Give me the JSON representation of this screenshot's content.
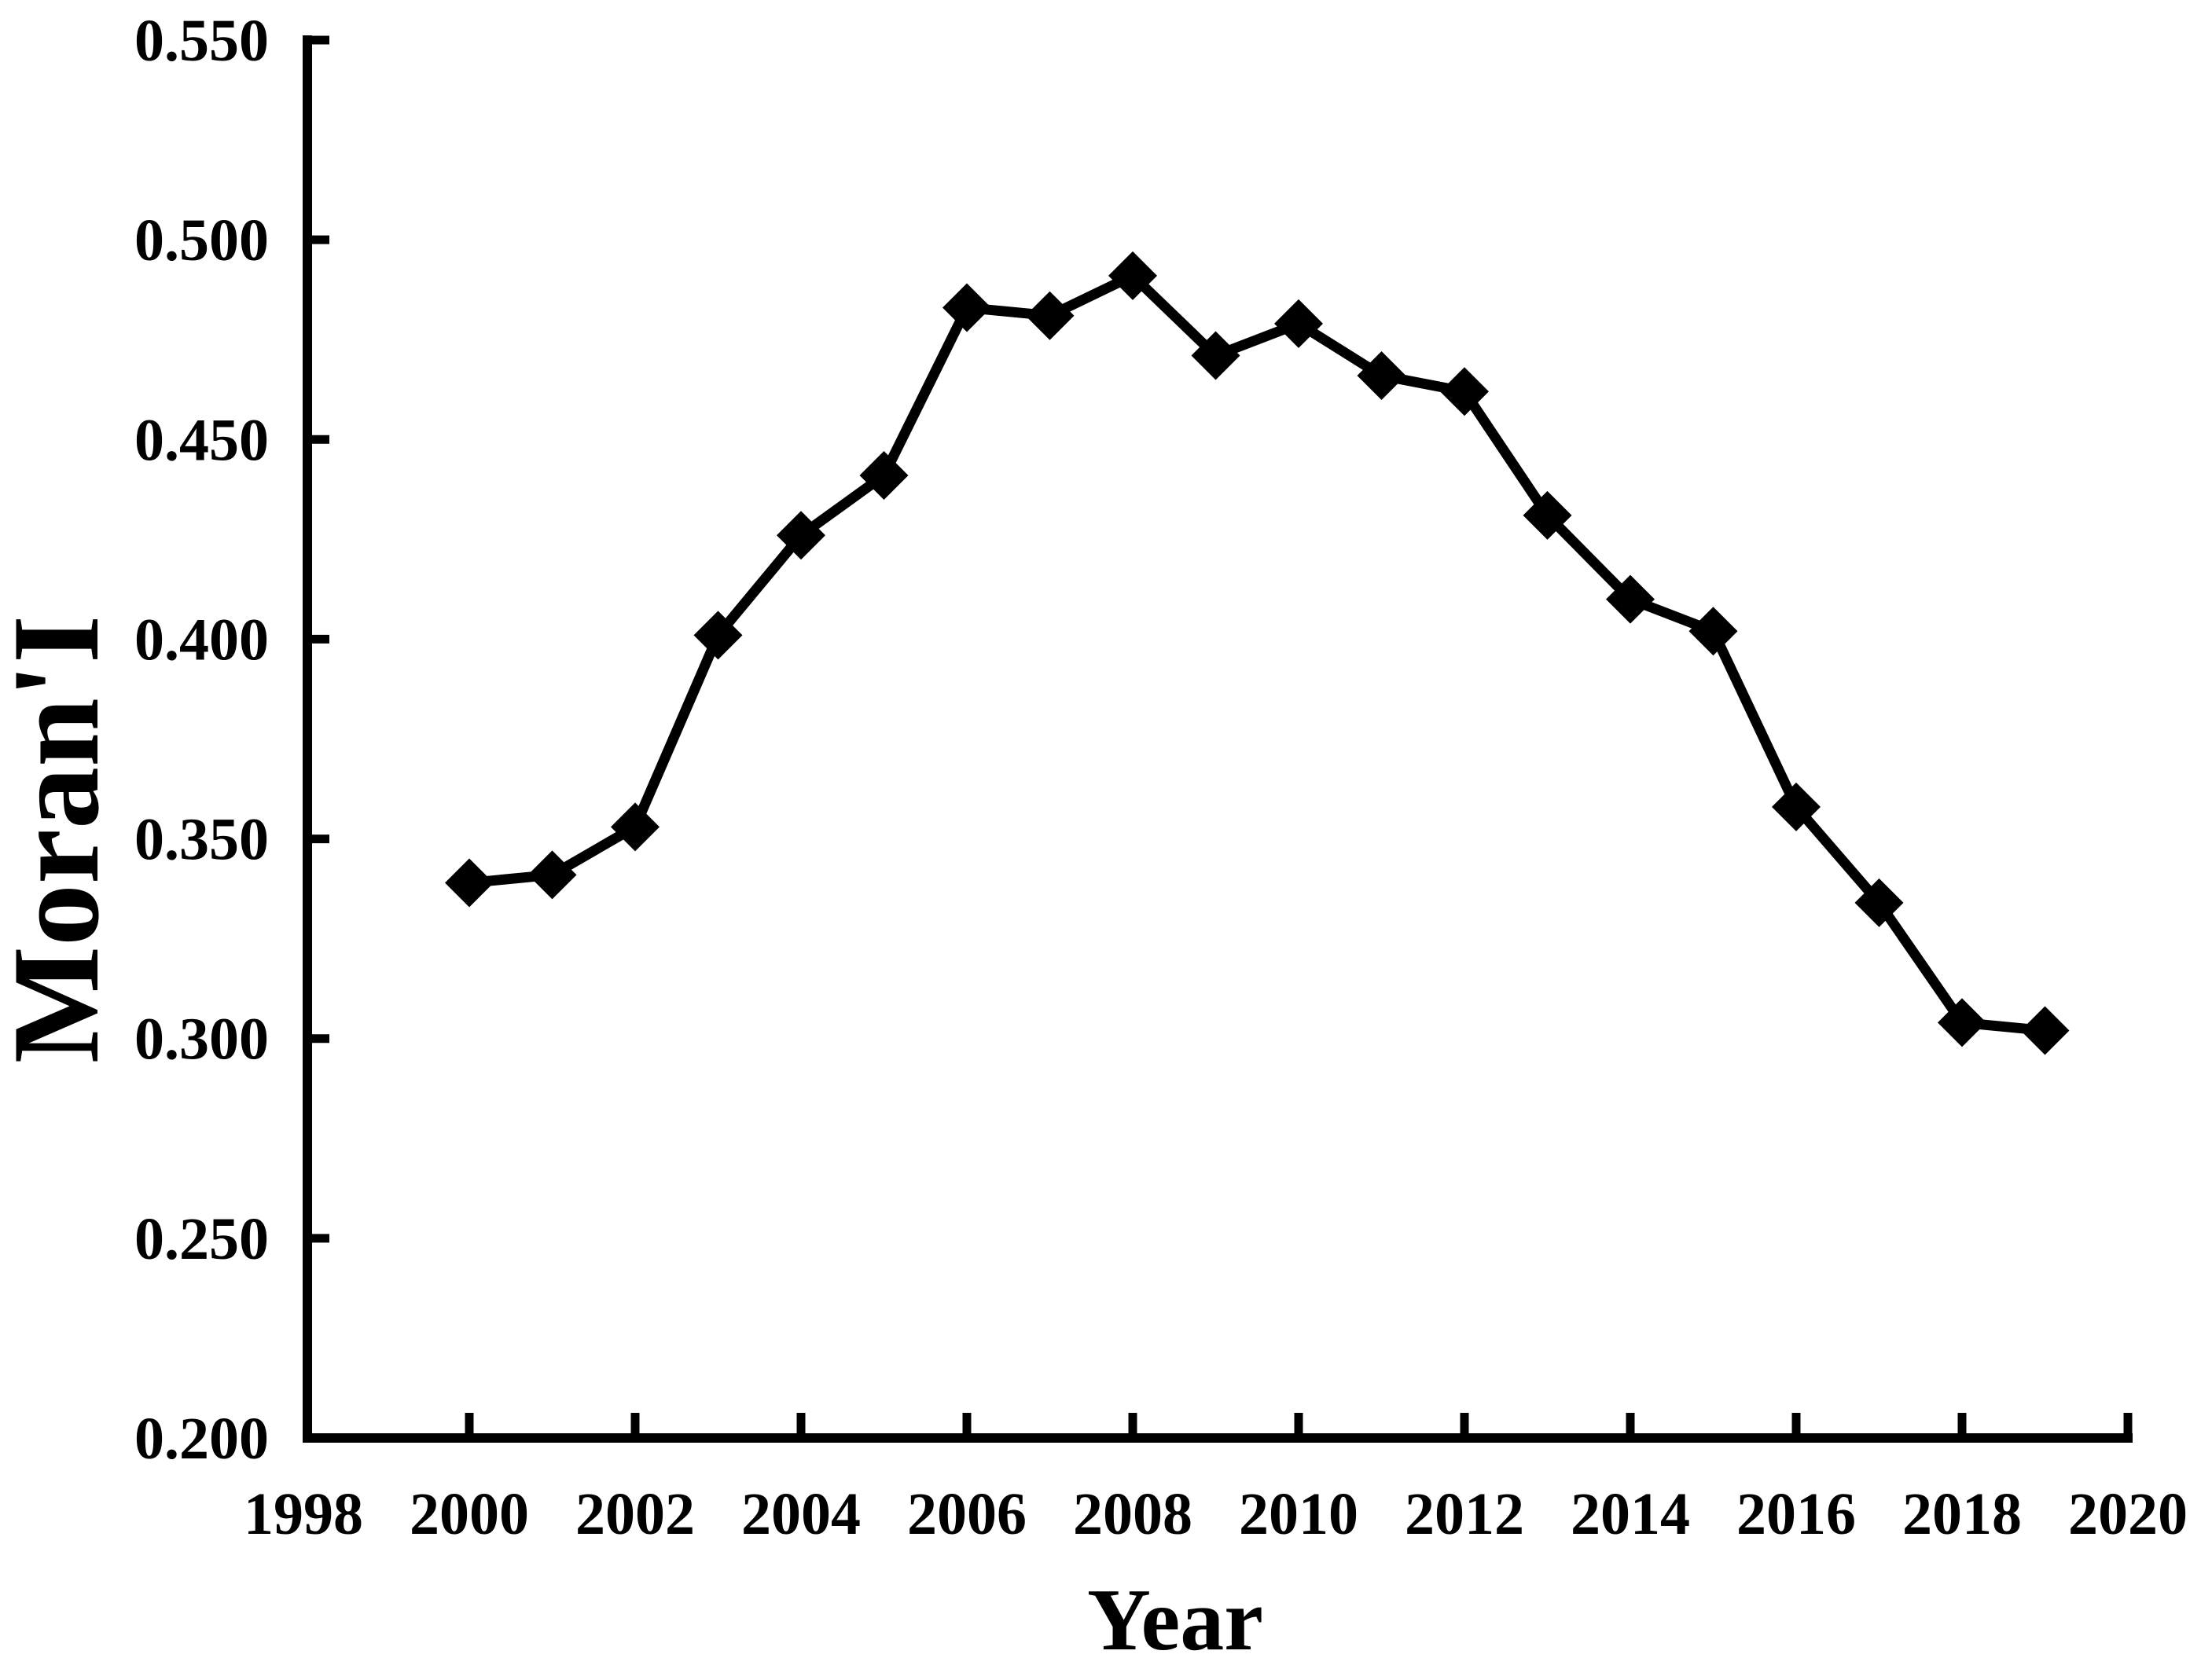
{
  "colors": {
    "ink": "#000000",
    "background": "#ffffff"
  },
  "chart_data": {
    "type": "line",
    "title": "",
    "xlabel": "Year",
    "ylabel": "Moran'I",
    "series_name": "Moran'I",
    "x": [
      2000,
      2001,
      2002,
      2003,
      2004,
      2005,
      2006,
      2007,
      2008,
      2009,
      2010,
      2011,
      2012,
      2013,
      2014,
      2015,
      2016,
      2017,
      2018,
      2019
    ],
    "values": [
      0.339,
      0.341,
      0.353,
      0.401,
      0.426,
      0.441,
      0.483,
      0.481,
      0.491,
      0.471,
      0.479,
      0.466,
      0.462,
      0.431,
      0.41,
      0.402,
      0.358,
      0.334,
      0.304,
      0.302
    ],
    "xlim": [
      1998,
      2020
    ],
    "ylim": [
      0.2,
      0.55
    ],
    "x_tick_labels": [
      "1998",
      "2000",
      "2002",
      "2004",
      "2006",
      "2008",
      "2010",
      "2012",
      "2014",
      "2016",
      "2018",
      "2020"
    ],
    "x_tick_values": [
      1998,
      2000,
      2002,
      2004,
      2006,
      2008,
      2010,
      2012,
      2014,
      2016,
      2018,
      2020
    ],
    "y_tick_labels": [
      "0.200",
      "0.250",
      "0.300",
      "0.350",
      "0.400",
      "0.450",
      "0.500",
      "0.550"
    ],
    "y_tick_values": [
      0.2,
      0.25,
      0.3,
      0.35,
      0.4,
      0.45,
      0.5,
      0.55
    ],
    "marker": "diamond",
    "line_color": "#000000",
    "marker_color": "#000000",
    "grid": false,
    "legend_position": "none"
  }
}
